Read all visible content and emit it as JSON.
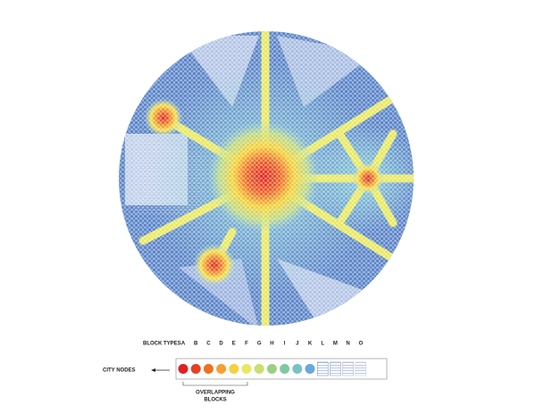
{
  "legend": {
    "title": "BLOCK TYPES",
    "letters": [
      "A",
      "B",
      "C",
      "D",
      "E",
      "F",
      "G",
      "H",
      "I",
      "J",
      "K",
      "L",
      "M",
      "N",
      "O"
    ]
  },
  "labels": {
    "city_nodes": "CITY NODES",
    "overlapping_blocks": [
      "OVERLAPPING",
      "BLOCKS"
    ]
  }
}
